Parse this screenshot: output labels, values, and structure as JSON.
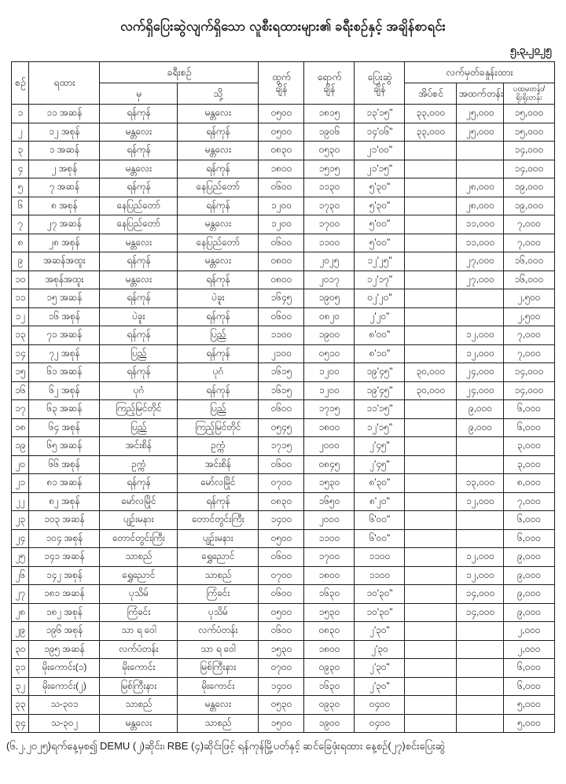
{
  "page": {
    "title": "လက်ရှိပြေးဆွဲလျက်ရှိသော လူစီးရထားများ၏ ခရီးစဉ်နှင့် အချိန်စာရင်း",
    "date": "၅.၃.၂၀၂၅",
    "footnote": "(၆.၂.၂၀၂၅)ရက်နေ့မှစ၍ DEMU (၂)ဆိုင်း၊ RBE (၄)ဆိုင်းဖြင့် ရန်ကုန်မြို့ပတ်နှင့် ဆင်ခြေဖုံးရထား နေ့စဉ်(၂၇)စင်းပြေးဆွဲ"
  },
  "table": {
    "header": {
      "no": "စဉ်",
      "train": "ရထား",
      "route": "ခရီးစဉ်",
      "from": "မှ",
      "to": "သို့",
      "depart": "ထွက်\nချိန်",
      "arrive": "ရောက်\nချိန်",
      "run": "ပြေးဆွဲ\nချိန်",
      "ticket": "လက်မှတ်ခနှုန်းထား",
      "sleeper": "အိပ်စင်",
      "upper": "အထက်တန်း",
      "ordinary": "ပထမတန်း/\nရိုးရိုးတန်း"
    },
    "underlines": [
      {
        "row": 12,
        "col": 3
      },
      {
        "row": 13,
        "col": 2
      },
      {
        "row": 16,
        "col": 3
      },
      {
        "row": 17,
        "col": 2
      }
    ],
    "rows": [
      [
        "၁",
        "၁၁ အဆန်",
        "ရန်ကုန်",
        "မန္တလေး",
        "၀၅၀၀",
        "၁၈၁၅",
        "၁၃'၁၅\"",
        "၃၃,၀၀၀",
        "၂၅,၀၀၀",
        "၁၅,၀၀၀"
      ],
      [
        "၂",
        "၁၂ အစုန်",
        "မန္တလေး",
        "ရန်ကုန်",
        "၀၅၀၀",
        "၁၉၀၆",
        "၁၄'၀၆\"",
        "၃၃,၀၀၀",
        "၂၅,၀၀၀",
        "၁၅,၀၀၀"
      ],
      [
        "၃",
        "၁ အဆန်",
        "ရန်ကုန်",
        "မန္တလေး",
        "၀၈၃၀",
        "၀၅၃၀",
        "၂၁'၀၀\"",
        "",
        "",
        "၁၄,၀၀၀"
      ],
      [
        "၄",
        "၂ အစုန်",
        "မန္တလေး",
        "ရန်ကုန်",
        "၁၈၀၀",
        "၁၅၁၅",
        "၂၁'၁၅\"",
        "",
        "",
        "၁၄,၀၀၀"
      ],
      [
        "၅",
        "၇ အဆန်",
        "ရန်ကုန်",
        "နေပြည်တော်",
        "၀၆၀၀",
        "၁၁၃၀",
        "၅'၃၀\"",
        "",
        "၂၈,၀၀၀",
        "၁၉,၀၀၀"
      ],
      [
        "၆",
        "၈ အစုန်",
        "နေပြည်တော်",
        "ရန်ကုန်",
        "၁၂၀၀",
        "၁၇၃၀",
        "၅'၃၀\"",
        "",
        "၂၈,၀၀၀",
        "၁၉,၀၀၀"
      ],
      [
        "၇",
        "၂၇ အဆန်",
        "နေပြည်တော်",
        "မန္တလေး",
        "၁၂၀၀",
        "၁၇၀၀",
        "၅'၀၀\"",
        "",
        "၁၁,၀၀၀",
        "၇,၀၀၀"
      ],
      [
        "၈",
        "၂၈ အစုန်",
        "မန္တလေး",
        "နေပြည်တော်",
        "၀၆၀၀",
        "၁၁၀၀",
        "၅'၀၀\"",
        "",
        "၁၁,၀၀၀",
        "၇,၀၀၀"
      ],
      [
        "၉",
        "အဆန်အထူး",
        "ရန်ကုန်",
        "မန္တလေး",
        "၀၈၀၀",
        "၂၀၂၅",
        "၁၂'၂၅\"",
        "",
        "၂၇,၀၀၀",
        "၁၆,၀၀၀"
      ],
      [
        "၁၀",
        "အစုန်အထူး",
        "မန္တလေး",
        "ရန်ကုန်",
        "၀၈၀၀",
        "၂၀၁၇",
        "၁၂'၁၇\"",
        "",
        "၂၇,၀၀၀",
        "၁၆,၀၀၀"
      ],
      [
        "၁၁",
        "၁၅ အဆန်",
        "ရန်ကုန်",
        "ပဲခူး",
        "၁၆၄၅",
        "၁၉၀၅",
        "၀၂'၂၀\"",
        "",
        "",
        "၂,၅၀၀"
      ],
      [
        "၁၂",
        "၁၆ အစုန်",
        "ပဲခူး",
        "ရန်ကုန်",
        "၀၆၀၀",
        "၀၈၂၀",
        "၂'၂၀\"",
        "",
        "",
        "၂,၅၀၀"
      ],
      [
        "၁၃",
        "၇၁ အဆန်",
        "ရန်ကုန်",
        "ပြည်",
        "၁၁၀၀",
        "၁၉၀၀",
        "၈'၀၀\"",
        "",
        "၁၂,၀၀၀",
        "၇,၀၀၀"
      ],
      [
        "၁၄",
        "၇၂ အစုန်",
        "ပြည်",
        "ရန်ကုန်",
        "၂၁၀၀",
        "၀၅၁၀",
        "၈'၁၀\"",
        "",
        "၁၂,၀၀၀",
        "၇,၀၀၀"
      ],
      [
        "၁၅",
        "၆၁ အဆန်",
        "ရန်ကုန်",
        "ပုဂံ",
        "၁၆၁၅",
        "၁၂၀၀",
        "၁၉'၄၅\"",
        "၃၀,၀၀၀",
        "၂၄,၀၀၀",
        "၁၄,၀၀၀"
      ],
      [
        "၁၆",
        "၆၂ အစုန်",
        "ပုဂံ",
        "ရန်ကုန်",
        "၁၆၁၅",
        "၁၂၀၀",
        "၁၉'၄၅\"",
        "၃၀,၀၀၀",
        "၂၄,၀၀၀",
        "၁၄,၀၀၀"
      ],
      [
        "၁၇",
        "၆၃ အဆန်",
        "ကြည့်မြင်တိုင်",
        "ပြည်",
        "၀၆၀၀",
        "၁၇၁၅",
        "၁၁'၁၅\"",
        "",
        "၉,၀၀၀",
        "၆,၀၀၀"
      ],
      [
        "၁၈",
        "၆၄ အစုန်",
        "ပြည်",
        "ကြည့်မြင်တိုင်",
        "၀၅၄၅",
        "၁၈၀၀",
        "၁၂'၁၅\"",
        "",
        "၉,၀၀၀",
        "၆,၀၀၀"
      ],
      [
        "၁၉",
        "၆၅ အဆန်",
        "အင်းစိန်",
        "ဥက္ကံ",
        "၁၇၁၅",
        "၂၀၀၀",
        "၂'၄၅\"",
        "",
        "",
        "၃,၀၀၀"
      ],
      [
        "၂၀",
        "၆၆ အစုန်",
        "ဥက္ကံ",
        "အင်းစိန်",
        "၀၆၀၀",
        "၀၈၄၅",
        "၂'၄၅\"",
        "",
        "",
        "၃,၀၀၀"
      ],
      [
        "၂၁",
        "၈၁ အဆန်",
        "ရန်ကုန်",
        "မော်လမြိုင်",
        "၀၇၀၀",
        "၁၅၃၀",
        "၈'၃၀\"",
        "",
        "၁၃,၀၀၀",
        "၈,၀၀၀"
      ],
      [
        "၂၂",
        "၈၂ အစုန်",
        "မော်လမြိုင်",
        "ရန်ကုန်",
        "၀၈၃၀",
        "၁၆၅၀",
        "၈'၂၀\"",
        "",
        "၁၂,၀၀၀",
        "၇,၀၀၀"
      ],
      [
        "၂၃",
        "၁၀၃ အဆန်",
        "ပျဉ်းမနား",
        "တောင်တွင်းကြီး",
        "၁၄၀၀",
        "၂၀၀၀",
        "၆'၀၀\"",
        "",
        "",
        "၆,၀၀၀"
      ],
      [
        "၂၄",
        "၁၀၄ အစုန်",
        "တောင်တွင်းကြီး",
        "ပျဉ်းမနား",
        "၀၅၀၀",
        "၁၁၀၀",
        "၆'၀၀\"",
        "",
        "",
        "၆,၀၀၀"
      ],
      [
        "၂၅",
        "၁၄၁ အဆန်",
        "သာစည်",
        "ရွှေညောင်",
        "၀၆၀၀",
        "၁၇၀၀",
        "၁၁၀၀",
        "",
        "၁၂,၀၀၀",
        "၉,၀၀၀"
      ],
      [
        "၂၆",
        "၁၄၂ အစုန်",
        "ရွှေညောင်",
        "သာစည်",
        "၀၇၀၀",
        "၁၈၀၀",
        "၁၁၀၀",
        "",
        "၁၂,၀၀၀",
        "၉,၀၀၀"
      ],
      [
        "၂၇",
        "၁၈၁ အဆန်",
        "ပုသိမ်",
        "ကြံခင်း",
        "၀၆၀၀",
        "၁၆၃၀",
        "၁၀'၃၀\"",
        "",
        "၁၄,၀၀၀",
        "၉,၀၀၀"
      ],
      [
        "၂၈",
        "၁၈၂ အစုန်",
        "ကြံခင်း",
        "ပုသိမ်",
        "၀၅၀၀",
        "၁၅၃၀",
        "၁၀'၃၀\"",
        "",
        "၁၄,၀၀၀",
        "၉,၀၀၀"
      ],
      [
        "၂၉",
        "၁၉၆ အစုန်",
        "သာ ရ ဝေါ",
        "လက်ပံတန်း",
        "၀၆၀၀",
        "၀၈၃၀",
        "၂'၃၀\"",
        "",
        "",
        "၂,၀၀၀"
      ],
      [
        "၃၀",
        "၁၉၅ အဆန်",
        "လက်ပံတန်း",
        "သာ ရ ဝေါ",
        "၁၅၃၀",
        "၁၈၀၀",
        "၂'၃၀",
        "",
        "",
        "၂,၀၀၀"
      ],
      [
        "၃၁",
        "မိုးကောင်း(၁)",
        "မိုးကောင်း",
        "မြစ်ကြီးနား",
        "၀၇၀၀",
        "၀၉၃၀",
        "၂'၃၀\"",
        "",
        "",
        "၆,၀၀၀"
      ],
      [
        "၃၂",
        "မိုးကောင်း(၂)",
        "မြစ်ကြီးနား",
        "မိုးကောင်း",
        "၁၄၀၀",
        "၁၆၃၀",
        "၂'၃၀\"",
        "",
        "",
        "၆,၀၀၀"
      ],
      [
        "၃၃",
        "သ-၃၀၁",
        "သာစည်",
        "မန္တလေး",
        "၀၅၃၀",
        "၀၉၃၀",
        "၀၄၀၀",
        "",
        "",
        "၅,၀၀၀"
      ],
      [
        "၃၄",
        "သ-၃၀၂",
        "မန္တလေး",
        "သာစည်",
        "၁၅၀၀",
        "၁၉၀၀",
        "၀၄၀၀",
        "",
        "",
        "၅,၀၀၀"
      ]
    ]
  }
}
